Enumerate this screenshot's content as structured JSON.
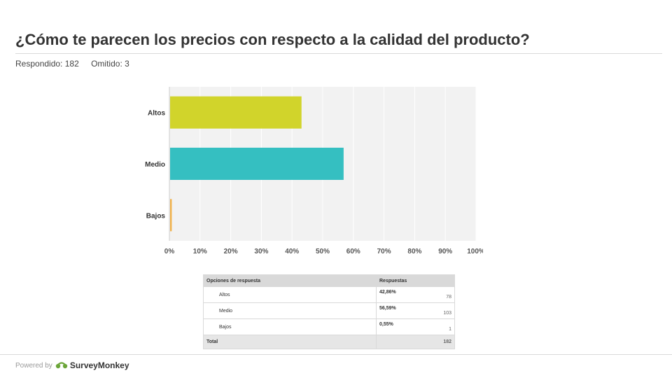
{
  "header": {
    "title": "¿Cómo te parecen los precios con respecto a la calidad del producto?",
    "answered": "Respondido: 182",
    "skipped": "Omitido: 3"
  },
  "chart_data": {
    "type": "bar",
    "orientation": "horizontal",
    "categories": [
      "Altos",
      "Medio",
      "Bajos"
    ],
    "values": [
      42.86,
      56.59,
      0.55
    ],
    "colors": [
      "#d1d42b",
      "#35bfc1",
      "#f1b24a"
    ],
    "xlim": [
      0,
      100
    ],
    "xticks": [
      "0%",
      "10%",
      "20%",
      "30%",
      "40%",
      "50%",
      "60%",
      "70%",
      "80%",
      "90%",
      "100%"
    ],
    "grid": true
  },
  "table": {
    "headers": [
      "Opciones de respuesta",
      "Respuestas"
    ],
    "rows": [
      {
        "option": "Altos",
        "percent": "42,86%",
        "count": "78"
      },
      {
        "option": "Medio",
        "percent": "56,59%",
        "count": "103"
      },
      {
        "option": "Bajos",
        "percent": "0,55%",
        "count": "1"
      }
    ],
    "total_label": "Total",
    "total": "182"
  },
  "footer": {
    "powered": "Powered by",
    "brand": "SurveyMonkey"
  }
}
